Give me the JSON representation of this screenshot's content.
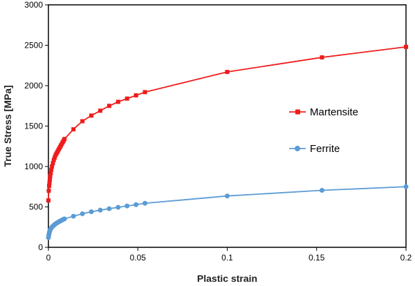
{
  "chart_data": {
    "type": "line",
    "title": "",
    "xlabel": "Plastic strain",
    "ylabel": "True Stress [MPa]",
    "xlim": [
      0,
      0.2
    ],
    "ylim": [
      0,
      3000
    ],
    "x_ticks": [
      "0",
      "0.05",
      "0.1",
      "0.15",
      "0.2"
    ],
    "y_ticks": [
      "0",
      "500",
      "1000",
      "1500",
      "2000",
      "2500",
      "3000"
    ],
    "grid": false,
    "legend_position": "right",
    "series": [
      {
        "name": "Martensite",
        "color": "#ee1c1c",
        "marker": "square",
        "x": [
          0,
          0.0002,
          0.0004,
          0.0006,
          0.0008,
          0.001,
          0.0013,
          0.0016,
          0.002,
          0.0025,
          0.003,
          0.0035,
          0.004,
          0.0045,
          0.005,
          0.0055,
          0.006,
          0.0065,
          0.007,
          0.0075,
          0.008,
          0.0085,
          0.009,
          0.014,
          0.019,
          0.024,
          0.029,
          0.034,
          0.039,
          0.044,
          0.049,
          0.054,
          0.1,
          0.153,
          0.2
        ],
        "y": [
          580,
          700,
          760,
          800,
          840,
          880,
          920,
          960,
          1000,
          1040,
          1080,
          1110,
          1140,
          1160,
          1180,
          1200,
          1220,
          1240,
          1260,
          1280,
          1300,
          1320,
          1340,
          1460,
          1560,
          1630,
          1690,
          1750,
          1800,
          1840,
          1880,
          1920,
          2170,
          2350,
          2480
        ]
      },
      {
        "name": "Ferrite",
        "color": "#5b9bd5",
        "marker": "circle",
        "x": [
          0,
          0.0002,
          0.0004,
          0.0006,
          0.0008,
          0.001,
          0.0013,
          0.0016,
          0.002,
          0.0025,
          0.003,
          0.0035,
          0.004,
          0.0045,
          0.005,
          0.0055,
          0.006,
          0.0065,
          0.007,
          0.0075,
          0.008,
          0.0085,
          0.009,
          0.014,
          0.019,
          0.024,
          0.029,
          0.034,
          0.039,
          0.044,
          0.049,
          0.054,
          0.1,
          0.153,
          0.2
        ],
        "y": [
          120,
          150,
          170,
          190,
          205,
          215,
          228,
          238,
          250,
          262,
          272,
          282,
          290,
          298,
          305,
          312,
          318,
          324,
          330,
          336,
          342,
          348,
          352,
          385,
          415,
          440,
          460,
          478,
          495,
          512,
          528,
          545,
          635,
          705,
          750
        ]
      }
    ]
  }
}
